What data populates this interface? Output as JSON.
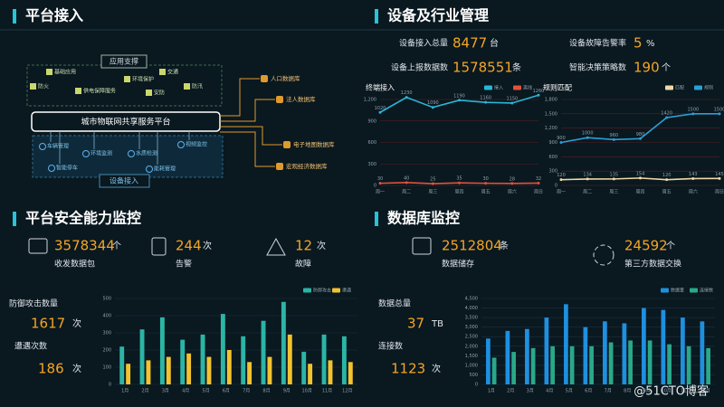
{
  "panels": {
    "access": "平台接入",
    "device": "设备及行业管理",
    "security": "平台安全能力监控",
    "database": "数据库监控"
  },
  "diagram": {
    "top_label": "应用支撑",
    "apps": [
      "基础应用",
      "交通",
      "防火",
      "供电保障服务",
      "环境保护",
      "安防",
      "防汛"
    ],
    "platform": "城市物联网共享服务平台",
    "devices": [
      "车辆管理",
      "环境监测",
      "水质检测",
      "视频监控",
      "智能停车",
      "能耗管理"
    ],
    "bottom_label": "设备接入",
    "databases": [
      "人口数据库",
      "法人数据库",
      "电子地图数据库",
      "宏观经济数据库"
    ]
  },
  "device_stats": [
    {
      "label": "设备接入总量",
      "value": 8477,
      "unit": "台"
    },
    {
      "label": "设备故障告警率",
      "value": 5,
      "unit": "%"
    },
    {
      "label": "设备上报数据数",
      "value": 1578551,
      "unit": "条"
    },
    {
      "label": "智能决策策略数",
      "value": 190,
      "unit": "个"
    }
  ],
  "security_stats": [
    {
      "value": 3578344,
      "unit": "个",
      "label": "收发数据包"
    },
    {
      "value": 244,
      "unit": "次",
      "label": "告警"
    },
    {
      "value": 12,
      "unit": "次",
      "label": "故障"
    }
  ],
  "security_side": [
    {
      "label": "防御攻击数量",
      "value": 1617,
      "unit": "次"
    },
    {
      "label": "遭遇次数",
      "value": 186,
      "unit": "次"
    }
  ],
  "db_stats": [
    {
      "value": 2512804,
      "unit": "条",
      "label": "数据储存"
    },
    {
      "value": 24592,
      "unit": "个",
      "label": "第三方数据交换"
    }
  ],
  "db_side": [
    {
      "label": "数据总量",
      "value": 37,
      "unit": "TB"
    },
    {
      "label": "连接数",
      "value": 1123,
      "unit": "次"
    }
  ],
  "watermark": "@51CTO博客",
  "chart_data": [
    {
      "type": "line",
      "title": "终端接入",
      "data_labels": true,
      "categories": [
        "周一",
        "周二",
        "周三",
        "周四",
        "周五",
        "周六",
        "周日"
      ],
      "series": [
        {
          "name": "接入",
          "color": "#29b6d6",
          "values": [
            1020,
            1230,
            1090,
            1190,
            1160,
            1150,
            1260
          ]
        },
        {
          "name": "离线",
          "color": "#e0533a",
          "values": [
            30,
            40,
            25,
            35,
            30,
            28,
            32
          ]
        }
      ],
      "ylim": [
        0,
        1200
      ],
      "yticks": [
        0,
        300,
        600,
        900,
        {
          "value": 1200,
          "label": "1,200"
        }
      ]
    },
    {
      "type": "line",
      "title": "规则匹配",
      "data_labels": true,
      "categories": [
        "周一",
        "周二",
        "周三",
        "周四",
        "周五",
        "周六",
        "周日"
      ],
      "series": [
        {
          "name": "匹配",
          "color": "#f0d9a8",
          "values": [
            120,
            134,
            135,
            154,
            120,
            143,
            145
          ]
        },
        {
          "name": "规则",
          "color": "#2a9fd6",
          "values": [
            900,
            1000,
            960,
            980,
            1420,
            1500,
            1500
          ]
        }
      ],
      "ylim": [
        0,
        1800
      ],
      "yticks": [
        0,
        300,
        600,
        900,
        {
          "value": 1200,
          "label": "1,200"
        },
        {
          "value": 1500,
          "label": "1,500"
        },
        {
          "value": 1800,
          "label": "1,800"
        }
      ]
    },
    {
      "type": "bar",
      "categories": [
        "1月",
        "2月",
        "3月",
        "4月",
        "5月",
        "6月",
        "7月",
        "8月",
        "9月",
        "10月",
        "11月",
        "12月"
      ],
      "series": [
        {
          "name": "防御攻击",
          "color": "#2bb5a5",
          "values": [
            220,
            320,
            390,
            260,
            290,
            410,
            280,
            370,
            480,
            190,
            290,
            280
          ]
        },
        {
          "name": "遭遇",
          "color": "#f2c230",
          "values": [
            120,
            140,
            160,
            180,
            160,
            200,
            130,
            160,
            290,
            120,
            140,
            130
          ]
        }
      ],
      "ylim": [
        0,
        500
      ],
      "yticks": [
        0,
        100,
        200,
        300,
        400,
        500
      ]
    },
    {
      "type": "bar",
      "categories": [
        "1月",
        "2月",
        "3月",
        "4月",
        "5月",
        "6月",
        "7月",
        "8月",
        "9月",
        "10月",
        "11月",
        "12月"
      ],
      "series": [
        {
          "name": "数据量",
          "color": "#1e90e0",
          "values": [
            2400,
            2800,
            2900,
            3500,
            4200,
            3000,
            3300,
            3200,
            4000,
            3900,
            3500,
            3300
          ]
        },
        {
          "name": "连接数",
          "color": "#2aa88a",
          "values": [
            1400,
            1700,
            1900,
            2000,
            2000,
            2000,
            2200,
            2300,
            2300,
            2100,
            2000,
            1900
          ]
        }
      ],
      "ylim": [
        0,
        4500
      ],
      "yticks": [
        0,
        500,
        {
          "value": 1000,
          "label": "1,000"
        },
        {
          "value": 1500,
          "label": "1,500"
        },
        {
          "value": 2000,
          "label": "2,000"
        },
        {
          "value": 2500,
          "label": "2,500"
        },
        {
          "value": 3000,
          "label": "3,000"
        },
        {
          "value": 3500,
          "label": "3,500"
        },
        {
          "value": 4000,
          "label": "4,000"
        },
        {
          "value": 4500,
          "label": "4,500"
        }
      ]
    }
  ]
}
